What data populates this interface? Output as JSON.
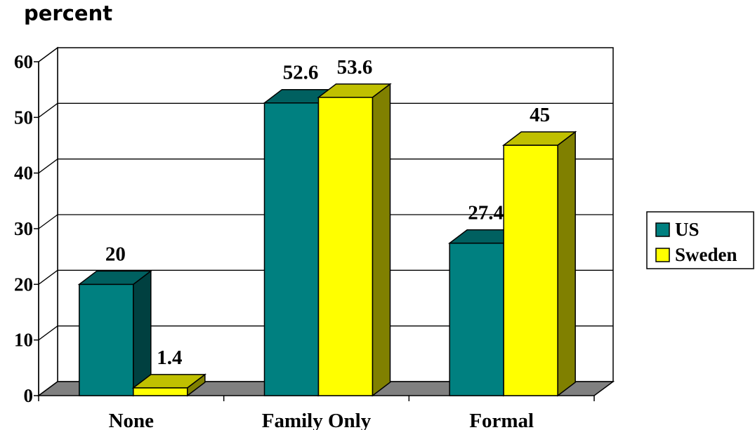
{
  "chart_data": {
    "type": "bar",
    "unit_label": "percent",
    "categories": [
      "None",
      "Family Only",
      "Formal"
    ],
    "series": [
      {
        "name": "US",
        "values": [
          20,
          52.6,
          27.4
        ],
        "color": "#008080",
        "side_color": "#004040",
        "top_color": "#006060"
      },
      {
        "name": "Sweden",
        "values": [
          1.4,
          53.6,
          45
        ],
        "color": "#ffff00",
        "side_color": "#808000",
        "top_color": "#c0c000"
      }
    ],
    "data_labels": [
      [
        "20",
        "52.6",
        "27.4"
      ],
      [
        "1.4",
        "53.6",
        "45"
      ]
    ],
    "y_ticks": [
      "0",
      "10",
      "20",
      "30",
      "40",
      "50",
      "60"
    ],
    "ylim": [
      0,
      60
    ],
    "grid": true,
    "legend_position": "right",
    "floor_color": "#808080"
  }
}
